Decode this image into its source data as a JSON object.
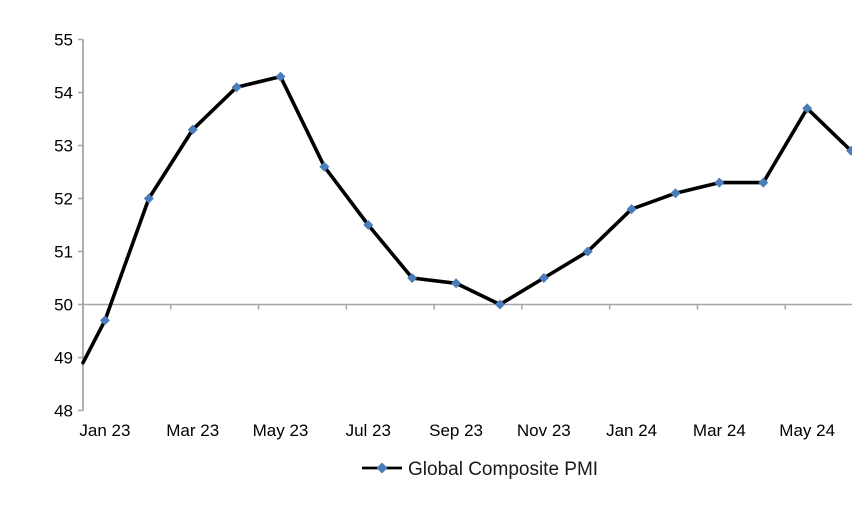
{
  "page": {
    "background_color": "#ffffff"
  },
  "chart_data": {
    "type": "line",
    "title": "",
    "categories": [
      "Jan 23",
      "Feb 23",
      "Mar 23",
      "Apr 23",
      "May 23",
      "Jun 23",
      "Jul 23",
      "Aug 23",
      "Sep 23",
      "Oct 23",
      "Nov 23",
      "Dec 23",
      "Jan 24",
      "Feb 24",
      "Mar 24",
      "Apr 24",
      "May 24",
      "Jun 24"
    ],
    "series": [
      {
        "name": "Global Composite PMI",
        "values": [
          49.7,
          52.0,
          53.3,
          54.1,
          54.3,
          52.6,
          51.5,
          50.5,
          50.4,
          50.0,
          50.5,
          51.0,
          51.8,
          52.1,
          52.3,
          52.3,
          53.7,
          52.9
        ],
        "left_edge_entry_value": 48.9,
        "line_color": "#000000",
        "line_width": 3.6,
        "marker_shape": "diamond",
        "marker_color": "#4a7ebb",
        "marker_size": 10
      }
    ],
    "xlabel": "",
    "ylabel": "",
    "ylim": [
      48,
      55
    ],
    "y_tick_step": 1,
    "y_tick_labels": [
      "48",
      "49",
      "50",
      "51",
      "52",
      "53",
      "54",
      "55"
    ],
    "x_visible_tick_labels": [
      "Jan 23",
      "Mar 23",
      "May 23",
      "Jul 23",
      "Sep 23",
      "Nov 23",
      "Jan 24",
      "Mar 24",
      "May 24"
    ],
    "x_label_interval": 2,
    "x_axis_crosses_at": 50,
    "axis_color": "#a6a6a6",
    "grid": "off",
    "legend_position": "bottom-center",
    "legend_label": "Global Composite PMI"
  }
}
